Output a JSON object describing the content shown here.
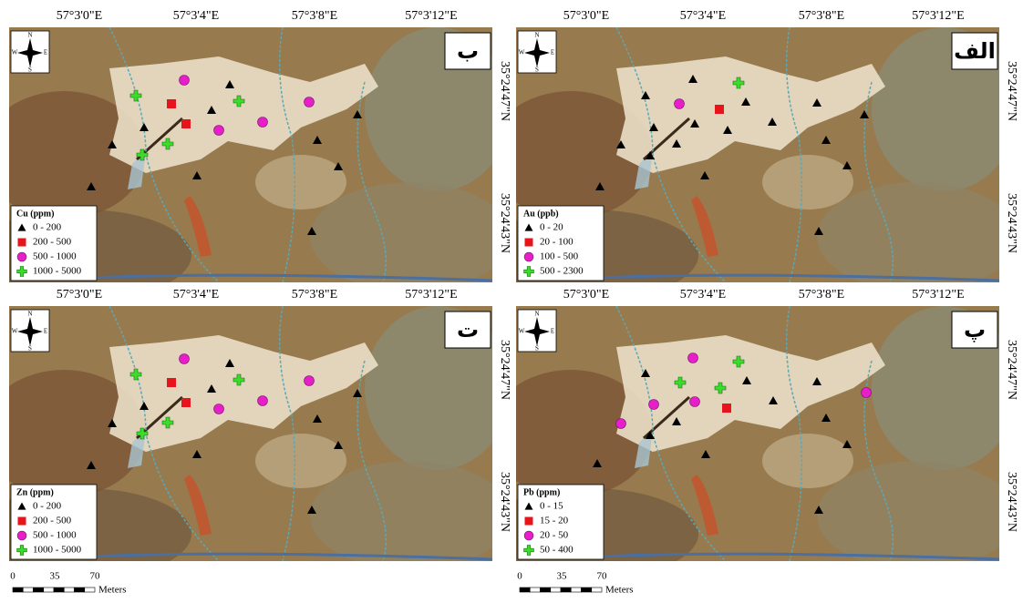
{
  "panels": [
    {
      "letter": "ب",
      "legend": {
        "title": "Cu (ppm)",
        "classes": [
          "0 - 200",
          "200 - 500",
          "500 - 1000",
          "1000 - 5000"
        ]
      }
    },
    {
      "letter": "الف",
      "legend": {
        "title": "Au (ppb)",
        "classes": [
          "0 - 20",
          "20 - 100",
          "100 - 500",
          "500 - 2300"
        ]
      }
    },
    {
      "letter": "ت",
      "legend": {
        "title": "Zn (ppm)",
        "classes": [
          "0 - 200",
          "200 - 500",
          "500 - 1000",
          "1000 - 5000"
        ]
      }
    },
    {
      "letter": "پ",
      "legend": {
        "title": "Pb (ppm)",
        "classes": [
          "0 - 15",
          "15 - 20",
          "20 - 50",
          "50 - 400"
        ]
      }
    }
  ],
  "coordinates": {
    "longitude": [
      "57°3'0\"E",
      "57°3'4\"E",
      "57°3'8\"E",
      "57°3'12\"E"
    ],
    "latitude": [
      "35°24'47\"N",
      "35°24'43\"N"
    ]
  },
  "compass": {
    "north": "N",
    "south": "S",
    "east": "E",
    "west": "W"
  },
  "scale_bar": {
    "labels": [
      "0",
      "35",
      "70"
    ],
    "unit": "Meters"
  }
}
